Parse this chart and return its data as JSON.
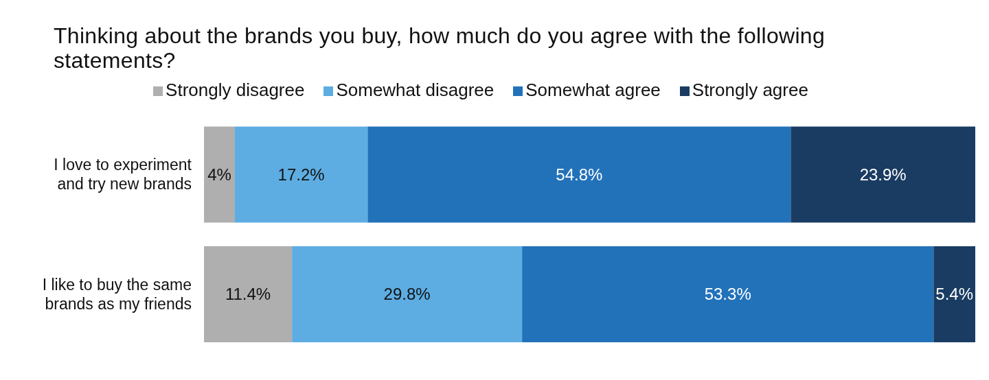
{
  "chart_data": {
    "type": "bar",
    "title": "Thinking about the brands you buy, how much do you agree with the following statements?",
    "orientation": "horizontal",
    "stacked": true,
    "legend": "top",
    "categories": [
      "I love to experiment and try new brands",
      "I like to buy the same brands as my friends"
    ],
    "series": [
      {
        "name": "Strongly disagree",
        "color": "#afafaf",
        "values": [
          4,
          11.4
        ],
        "value_labels": [
          "4%",
          "11.4%"
        ]
      },
      {
        "name": "Somewhat disagree",
        "color": "#5dade2",
        "values": [
          17.2,
          29.8
        ],
        "value_labels": [
          "17.2%",
          "29.8%"
        ]
      },
      {
        "name": "Somewhat agree",
        "color": "#2272ba",
        "values": [
          54.8,
          53.3
        ],
        "value_labels": [
          "54.8%",
          "53.3%"
        ]
      },
      {
        "name": "Strongly agree",
        "color": "#1a3c63",
        "values": [
          23.9,
          5.4
        ],
        "value_labels": [
          "23.9%",
          "5.4%"
        ]
      }
    ]
  }
}
